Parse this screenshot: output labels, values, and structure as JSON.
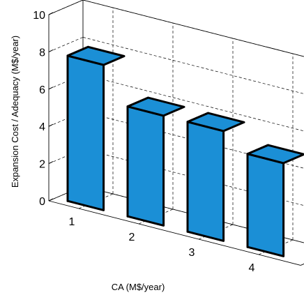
{
  "chart_data": {
    "type": "bar",
    "title": "",
    "xlabel": "CA (M$/year)",
    "ylabel": "Expansion Cost / Adequacy (M$/year)",
    "categories": [
      "1",
      "2",
      "3",
      "4"
    ],
    "values": [
      7.8,
      5.9,
      5.9,
      5.0
    ],
    "ylim": [
      0,
      10
    ],
    "yticks": [
      "0",
      "2",
      "4",
      "6",
      "8",
      "10"
    ],
    "grid": true,
    "bar_color": "#1b8fd6",
    "style": "3d"
  }
}
